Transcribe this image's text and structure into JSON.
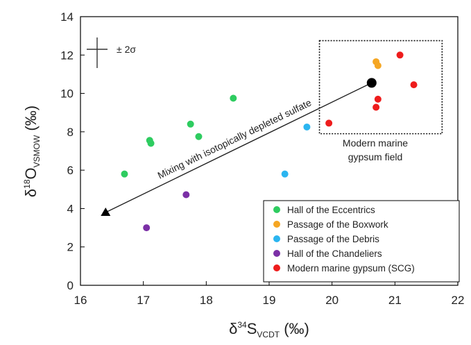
{
  "chart_data": {
    "type": "scatter",
    "xlabel": {
      "prefix": "δ",
      "sup": "34",
      "main": "S",
      "sub": "VCDT",
      "unit": " (‰)"
    },
    "ylabel": {
      "prefix": "δ",
      "sup": "18",
      "main": "O",
      "sub": "VSMOW",
      "unit": " (‰)"
    },
    "xlim": [
      16,
      22
    ],
    "ylim": [
      0,
      14
    ],
    "xticks": [
      16,
      17,
      18,
      19,
      20,
      21,
      22
    ],
    "yticks": [
      0,
      2,
      4,
      6,
      8,
      10,
      12,
      14
    ],
    "grid": false,
    "legend_position": "bottom-right",
    "error_bar_label": "± 2σ",
    "series": [
      {
        "name": "Hall of the Eccentrics",
        "color": "#2ecc60",
        "points": [
          [
            16.7,
            5.8
          ],
          [
            17.1,
            7.55
          ],
          [
            17.12,
            7.4
          ],
          [
            17.75,
            8.4
          ],
          [
            17.88,
            7.75
          ],
          [
            18.43,
            9.75
          ]
        ]
      },
      {
        "name": "Passage of the Boxwork",
        "color": "#f5a623",
        "points": [
          [
            20.7,
            11.65
          ],
          [
            20.73,
            11.45
          ]
        ]
      },
      {
        "name": "Passage of the Debris",
        "color": "#2bb5f0",
        "points": [
          [
            19.25,
            5.8
          ],
          [
            19.6,
            8.25
          ]
        ]
      },
      {
        "name": "Hall of the Chandeliers",
        "color": "#7b2fa6",
        "points": [
          [
            17.05,
            3.0
          ],
          [
            17.68,
            4.72
          ]
        ]
      },
      {
        "name": "Modern marine gypsum (SCG)",
        "color": "#ee1c1c",
        "points": [
          [
            19.95,
            8.45
          ],
          [
            20.7,
            9.28
          ],
          [
            20.73,
            9.7
          ],
          [
            21.08,
            12.0
          ],
          [
            21.3,
            10.45
          ]
        ]
      }
    ],
    "annotations": {
      "mixing_line_label": "Mixing with isotopically depleted sulfate",
      "mixing_start": [
        20.63,
        10.55
      ],
      "mixing_end": [
        16.4,
        3.8
      ],
      "field_label_line1": "Modern marine",
      "field_label_line2": "gypsum field",
      "field_box_x": [
        19.8,
        21.75
      ],
      "field_box_y": [
        7.9,
        12.75
      ]
    }
  }
}
